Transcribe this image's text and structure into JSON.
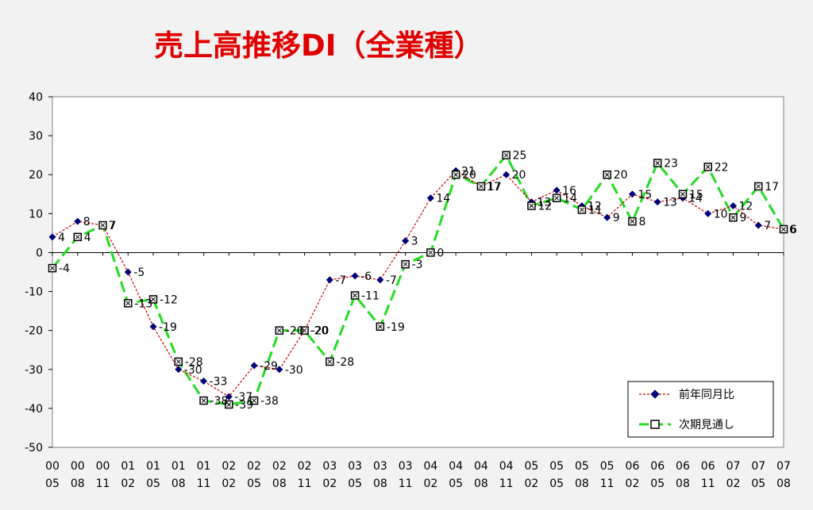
{
  "chart_data": {
    "type": "line",
    "title": "売上高推移DI（全業種）",
    "ylim": [
      -50,
      40
    ],
    "yticks": [
      40,
      30,
      20,
      10,
      0,
      -10,
      -20,
      -30,
      -40,
      -50
    ],
    "grid": false,
    "legend_position": "bottom-right",
    "categories": [
      [
        "00",
        "05"
      ],
      [
        "00",
        "08"
      ],
      [
        "00",
        "11"
      ],
      [
        "01",
        "02"
      ],
      [
        "01",
        "05"
      ],
      [
        "01",
        "08"
      ],
      [
        "01",
        "11"
      ],
      [
        "02",
        "02"
      ],
      [
        "02",
        "05"
      ],
      [
        "02",
        "08"
      ],
      [
        "02",
        "11"
      ],
      [
        "03",
        "02"
      ],
      [
        "03",
        "05"
      ],
      [
        "03",
        "08"
      ],
      [
        "03",
        "11"
      ],
      [
        "04",
        "02"
      ],
      [
        "04",
        "05"
      ],
      [
        "04",
        "08"
      ],
      [
        "04",
        "11"
      ],
      [
        "05",
        "02"
      ],
      [
        "05",
        "05"
      ],
      [
        "05",
        "08"
      ],
      [
        "05",
        "11"
      ],
      [
        "06",
        "02"
      ],
      [
        "06",
        "05"
      ],
      [
        "06",
        "08"
      ],
      [
        "06",
        "11"
      ],
      [
        "07",
        "02"
      ],
      [
        "07",
        "05"
      ],
      [
        "07",
        "08"
      ]
    ],
    "series": [
      {
        "name": "前年同月比",
        "color": "#cc0000",
        "marker_color": "#00007a",
        "values": [
          4,
          8,
          7,
          -5,
          -19,
          -30,
          -33,
          -37,
          -29,
          -30,
          -20,
          -7,
          -6,
          -7,
          3,
          14,
          21,
          17,
          20,
          13,
          16,
          12,
          9,
          15,
          13,
          14,
          10,
          12,
          7,
          6
        ]
      },
      {
        "name": "次期見通し",
        "color": "#22dd22",
        "values": [
          -4,
          4,
          7,
          -13,
          -12,
          -28,
          -38,
          -39,
          -38,
          -20,
          -20,
          -28,
          -11,
          -19,
          -3,
          0,
          20,
          17,
          25,
          12,
          14,
          11,
          20,
          8,
          23,
          15,
          22,
          9,
          17,
          6
        ]
      }
    ]
  }
}
